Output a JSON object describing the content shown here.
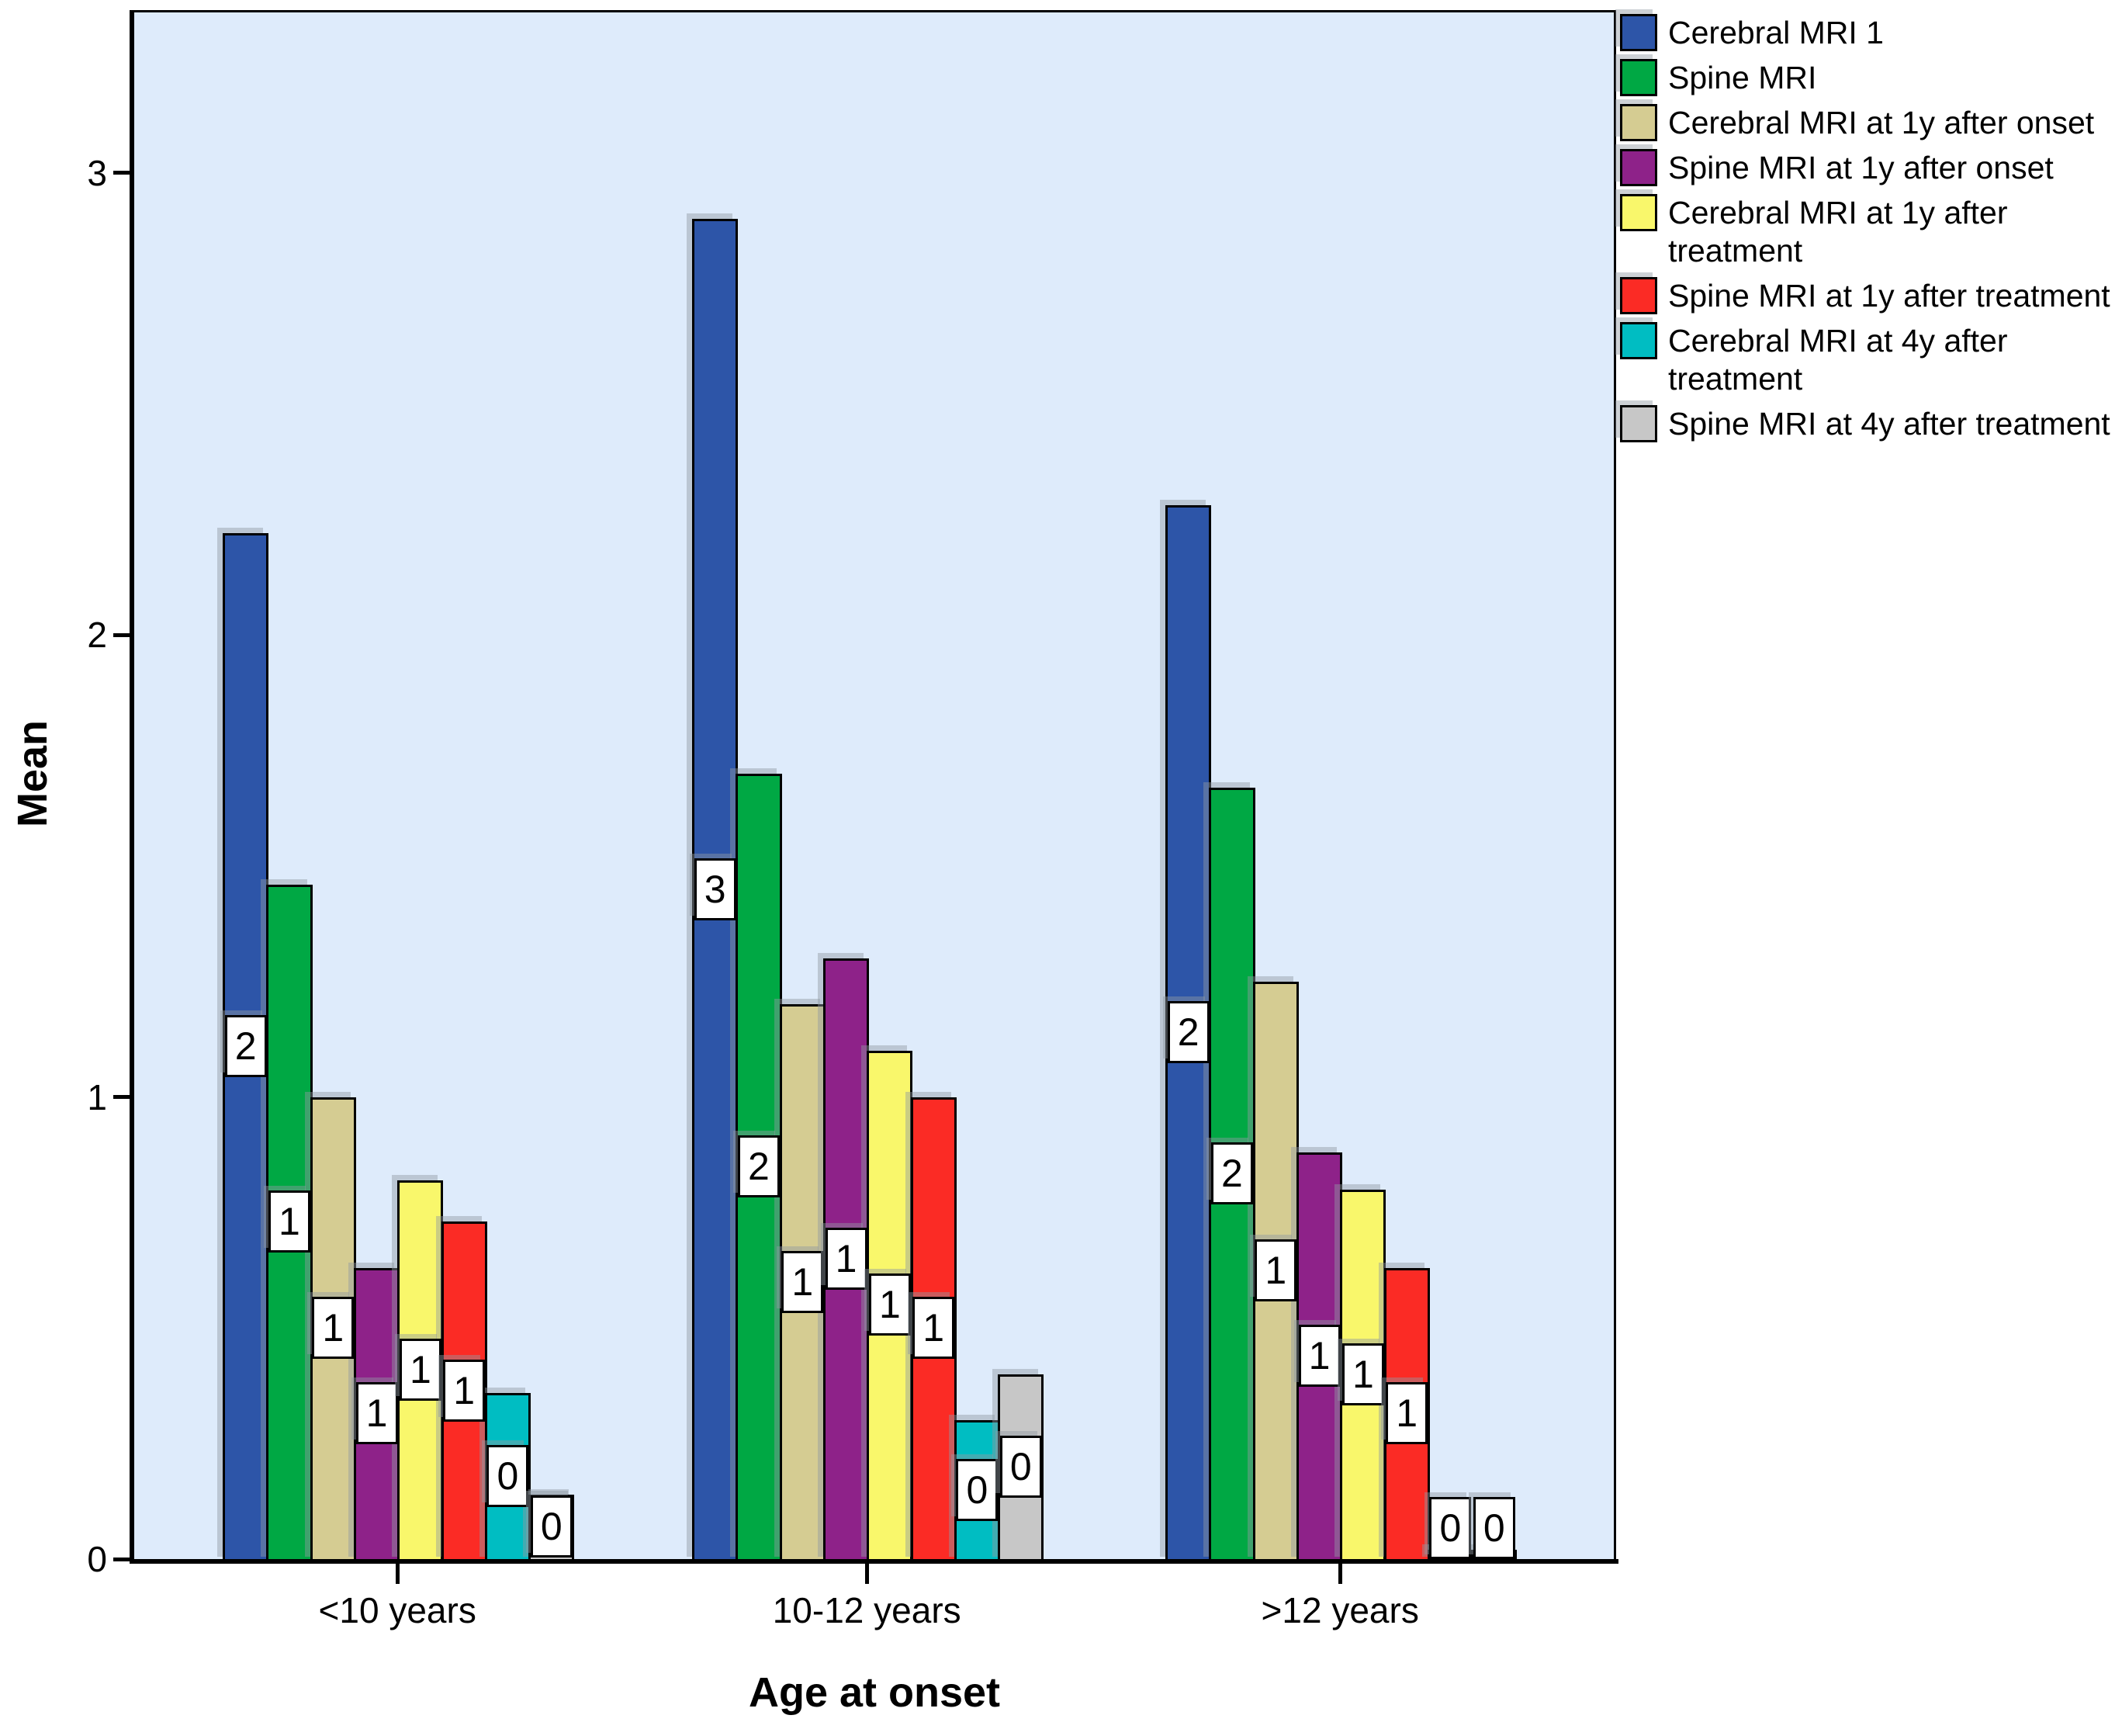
{
  "chart_data": {
    "type": "bar",
    "title": "",
    "ylabel": "Mean",
    "xlabel": "Age at onset",
    "categories": [
      "<10 years",
      "10-12 years",
      ">12 years"
    ],
    "yticks": [
      0,
      1,
      2,
      3
    ],
    "ylim": [
      0,
      3.34
    ],
    "grid": false,
    "legend_position": "top-right",
    "plot_background": "#DEEBFB",
    "bar_border_color": "#000000",
    "value_label_box": {
      "background": "#FFFFFF",
      "border": "#000000"
    },
    "series": [
      {
        "name": "Cerebral MRI 1",
        "color": "#2D55A8",
        "values": [
          2.22,
          2.9,
          2.28
        ],
        "bar_labels": [
          "2",
          "3",
          "2"
        ]
      },
      {
        "name": "Spine MRI",
        "color": "#00A844",
        "values": [
          1.46,
          1.7,
          1.67
        ],
        "bar_labels": [
          "1",
          "2",
          "2"
        ]
      },
      {
        "name": "Cerebral MRI at 1y after onset",
        "color": "#D5CC92",
        "values": [
          1.0,
          1.2,
          1.25
        ],
        "bar_labels": [
          "1",
          "1",
          "1"
        ]
      },
      {
        "name": "Spine MRI at 1y after onset",
        "color": "#8E2289",
        "values": [
          0.63,
          1.3,
          0.88
        ],
        "bar_labels": [
          "1",
          "1",
          "1"
        ]
      },
      {
        "name": "Cerebral MRI at 1y after treatment",
        "color": "#F9F76B",
        "values": [
          0.82,
          1.1,
          0.8
        ],
        "bar_labels": [
          "1",
          "1",
          "1"
        ]
      },
      {
        "name": "Spine MRI at 1y after treatment",
        "color": "#FB2B25",
        "values": [
          0.73,
          1.0,
          0.63
        ],
        "bar_labels": [
          "1",
          "1",
          "1"
        ]
      },
      {
        "name": "Cerebral MRI at 4y after treatment",
        "color": "#00BDC2",
        "values": [
          0.36,
          0.3,
          0.02
        ],
        "bar_labels": [
          "0",
          "0",
          "0"
        ]
      },
      {
        "name": "Spine MRI at 4y after treatment",
        "color": "#C7C7C7",
        "values": [
          0.14,
          0.4,
          0.02
        ],
        "bar_labels": [
          "0",
          "0",
          "0"
        ]
      }
    ]
  }
}
